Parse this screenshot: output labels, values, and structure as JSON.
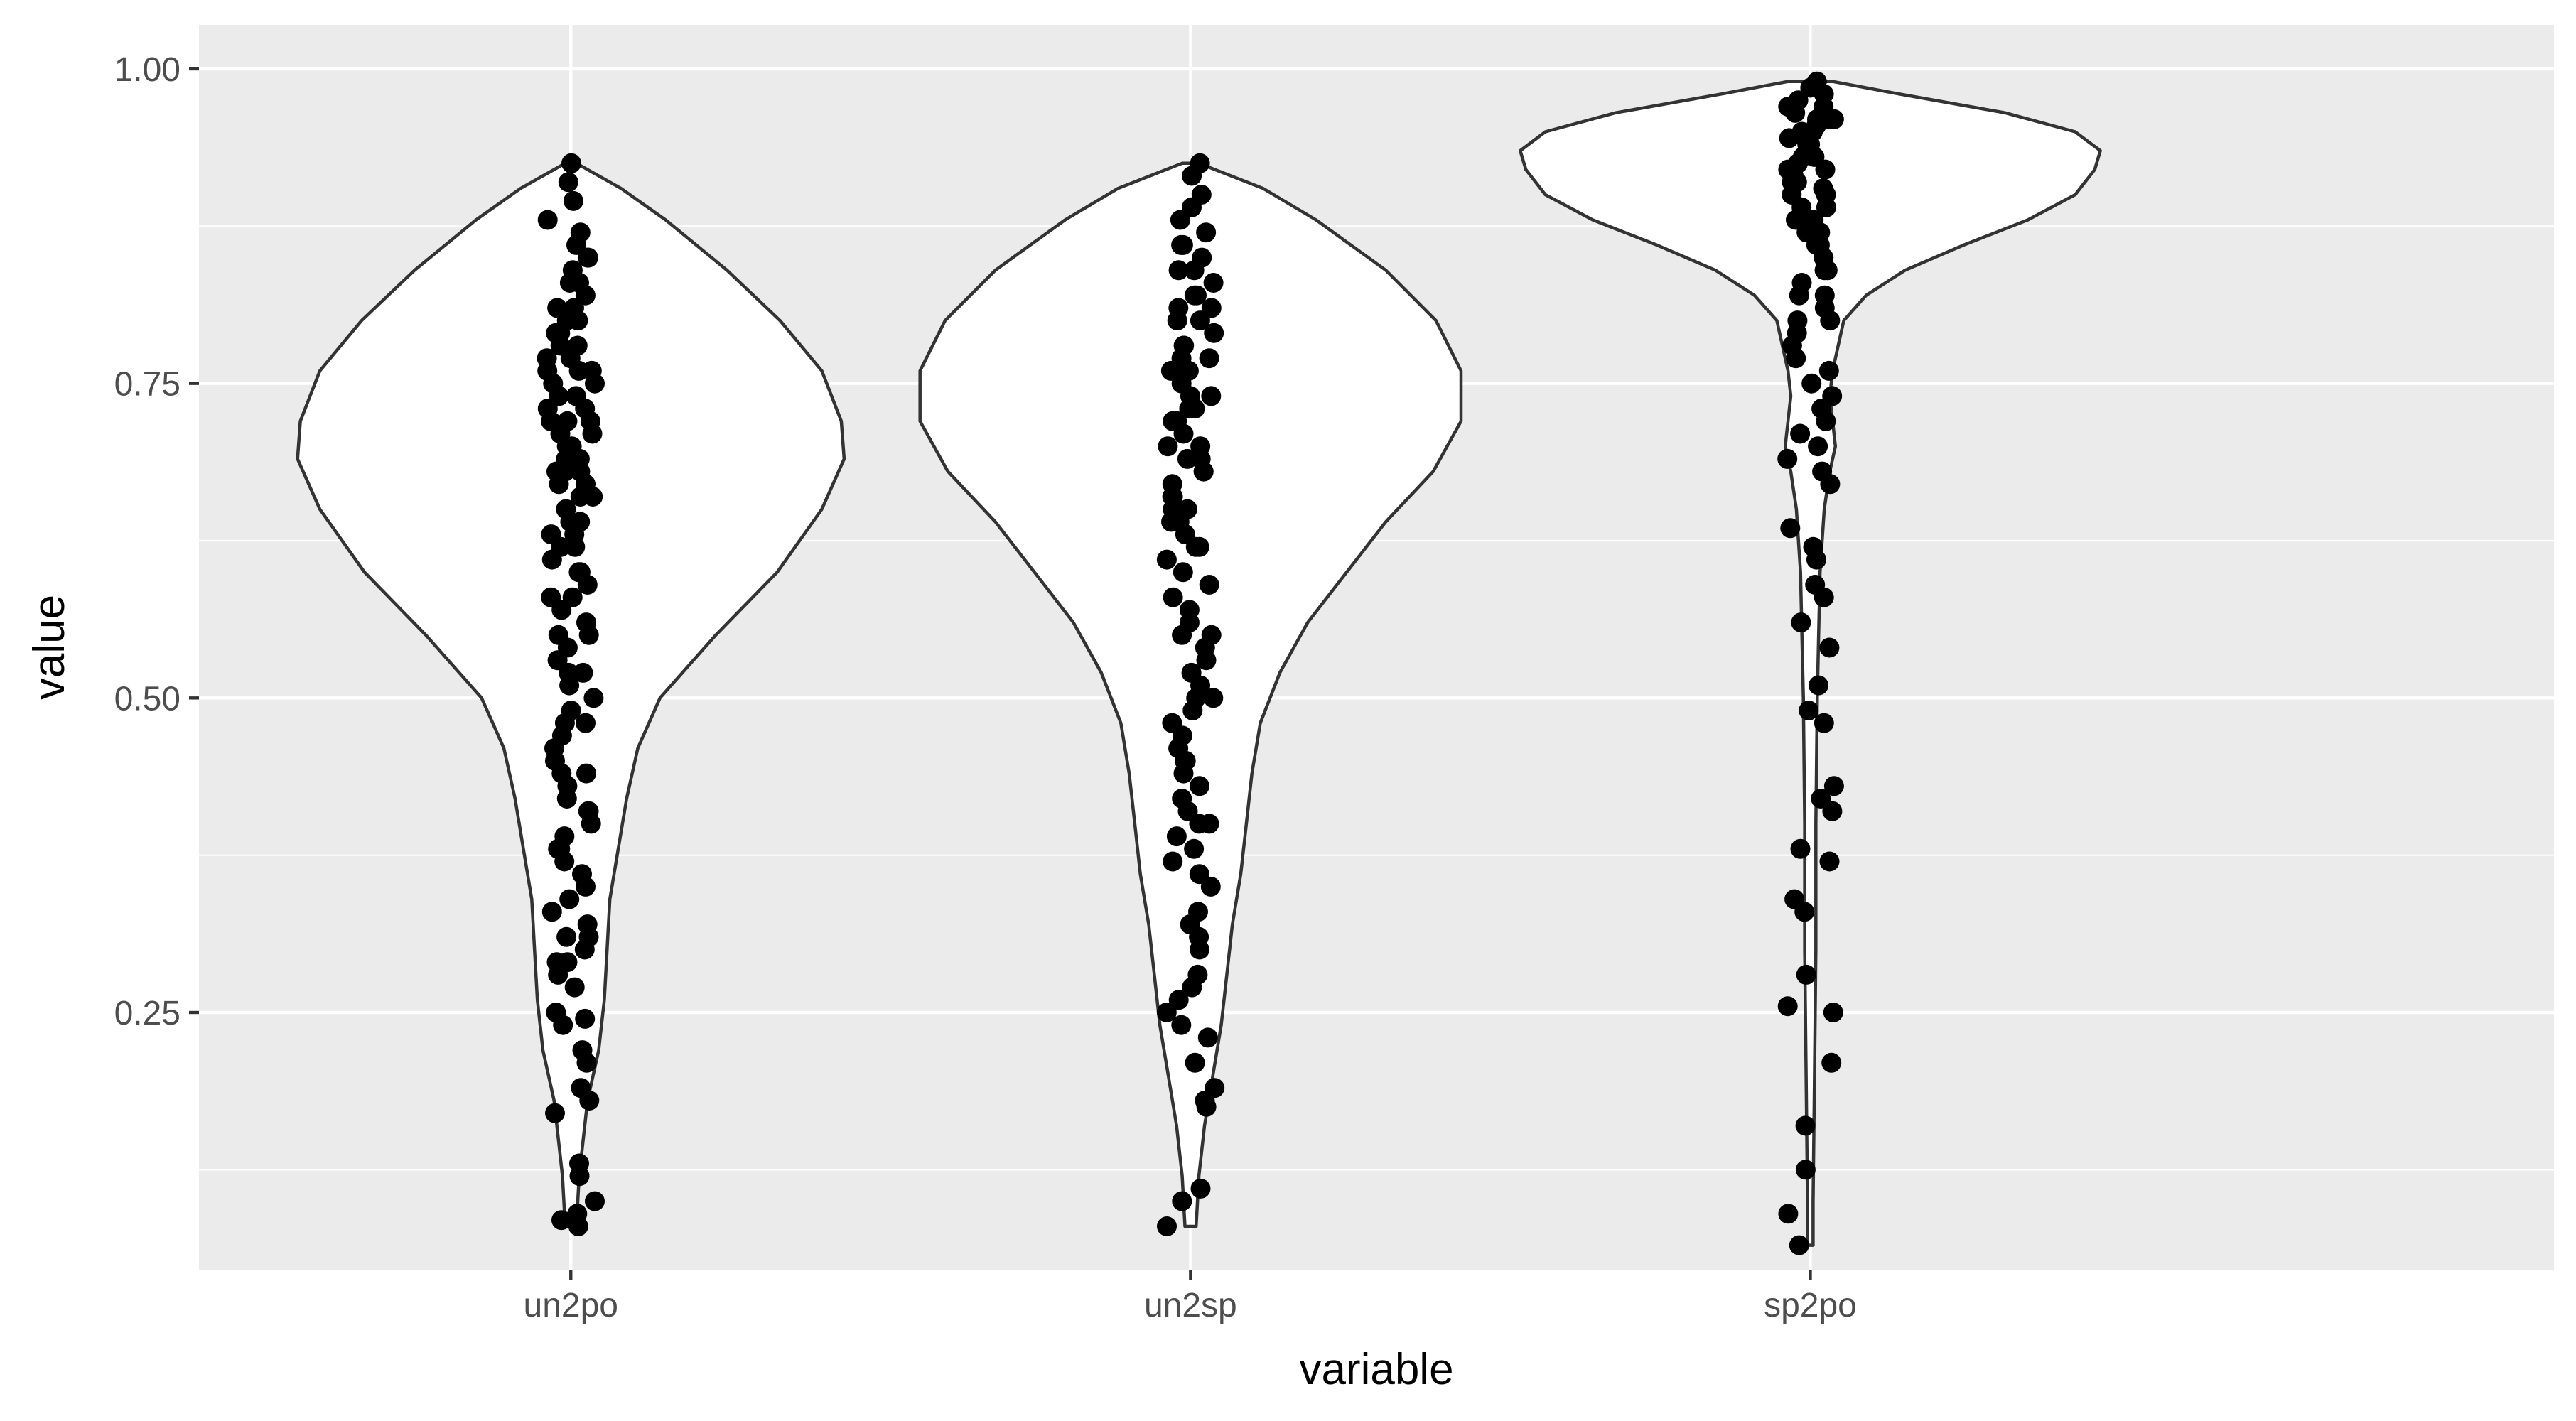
{
  "chart_data": {
    "type": "violin",
    "xlabel": "variable",
    "ylabel": "value",
    "categories": [
      "un2po",
      "un2sp",
      "sp2po"
    ],
    "ylim": [
      0.045,
      1.035
    ],
    "y_ticks": [
      0.25,
      0.5,
      0.75,
      1.0
    ],
    "y_tick_labels": [
      "0.25",
      "0.50",
      "0.75",
      "1.00"
    ],
    "grid": true,
    "colors": {
      "panel_background": "#ebebeb",
      "grid_line": "#ffffff",
      "violin_fill": "#ffffff",
      "violin_outline": "#333333",
      "point": "#000000",
      "tick_label": "#4d4d4d",
      "axis_title": "#000000"
    },
    "violins": [
      {
        "category": "un2po",
        "profile": [
          [
            0.08,
            0.02
          ],
          [
            0.12,
            0.03
          ],
          [
            0.18,
            0.06
          ],
          [
            0.22,
            0.1
          ],
          [
            0.26,
            0.12
          ],
          [
            0.3,
            0.13
          ],
          [
            0.34,
            0.14
          ],
          [
            0.38,
            0.17
          ],
          [
            0.42,
            0.2
          ],
          [
            0.46,
            0.24
          ],
          [
            0.5,
            0.32
          ],
          [
            0.55,
            0.52
          ],
          [
            0.6,
            0.74
          ],
          [
            0.65,
            0.9
          ],
          [
            0.69,
            0.98
          ],
          [
            0.72,
            0.97
          ],
          [
            0.76,
            0.9
          ],
          [
            0.8,
            0.75
          ],
          [
            0.84,
            0.56
          ],
          [
            0.88,
            0.34
          ],
          [
            0.905,
            0.18
          ],
          [
            0.925,
            0.02
          ]
        ],
        "points": [
          0.08,
          0.085,
          0.09,
          0.1,
          0.12,
          0.13,
          0.17,
          0.18,
          0.19,
          0.21,
          0.22,
          0.24,
          0.245,
          0.25,
          0.27,
          0.28,
          0.29,
          0.3,
          0.31,
          0.32,
          0.33,
          0.34,
          0.36,
          0.37,
          0.38,
          0.39,
          0.4,
          0.41,
          0.42,
          0.43,
          0.44,
          0.45,
          0.46,
          0.47,
          0.48,
          0.49,
          0.5,
          0.51,
          0.52,
          0.53,
          0.54,
          0.55,
          0.56,
          0.57,
          0.58,
          0.59,
          0.6,
          0.61,
          0.62,
          0.63,
          0.64,
          0.65,
          0.66,
          0.67,
          0.68,
          0.69,
          0.7,
          0.71,
          0.72,
          0.73,
          0.74,
          0.75,
          0.76,
          0.77,
          0.78,
          0.79,
          0.8,
          0.81,
          0.82,
          0.83,
          0.84,
          0.85,
          0.86,
          0.87,
          0.88,
          0.895,
          0.91,
          0.925,
          0.6,
          0.62,
          0.64,
          0.66,
          0.68,
          0.7,
          0.72,
          0.74,
          0.76,
          0.78,
          0.8,
          0.65,
          0.67,
          0.69,
          0.71,
          0.73,
          0.75,
          0.77,
          0.79,
          0.81,
          0.83,
          0.85,
          0.63,
          0.68,
          0.72,
          0.76,
          0.58,
          0.55,
          0.52,
          0.48,
          0.44,
          0.41,
          0.38,
          0.35,
          0.31,
          0.29
        ]
      },
      {
        "category": "un2sp",
        "profile": [
          [
            0.08,
            0.02
          ],
          [
            0.12,
            0.03
          ],
          [
            0.16,
            0.05
          ],
          [
            0.2,
            0.08
          ],
          [
            0.24,
            0.11
          ],
          [
            0.28,
            0.13
          ],
          [
            0.32,
            0.15
          ],
          [
            0.36,
            0.18
          ],
          [
            0.4,
            0.2
          ],
          [
            0.44,
            0.22
          ],
          [
            0.48,
            0.25
          ],
          [
            0.52,
            0.32
          ],
          [
            0.56,
            0.42
          ],
          [
            0.6,
            0.56
          ],
          [
            0.64,
            0.7
          ],
          [
            0.68,
            0.87
          ],
          [
            0.72,
            0.97
          ],
          [
            0.76,
            0.97
          ],
          [
            0.8,
            0.88
          ],
          [
            0.84,
            0.7
          ],
          [
            0.88,
            0.45
          ],
          [
            0.905,
            0.26
          ],
          [
            0.925,
            0.03
          ]
        ],
        "points": [
          0.08,
          0.1,
          0.11,
          0.175,
          0.18,
          0.19,
          0.21,
          0.23,
          0.24,
          0.25,
          0.26,
          0.27,
          0.28,
          0.3,
          0.31,
          0.32,
          0.33,
          0.35,
          0.36,
          0.37,
          0.38,
          0.39,
          0.4,
          0.41,
          0.42,
          0.43,
          0.44,
          0.45,
          0.46,
          0.47,
          0.48,
          0.49,
          0.5,
          0.51,
          0.52,
          0.53,
          0.54,
          0.55,
          0.56,
          0.57,
          0.58,
          0.59,
          0.6,
          0.61,
          0.62,
          0.63,
          0.64,
          0.65,
          0.66,
          0.67,
          0.68,
          0.69,
          0.7,
          0.71,
          0.72,
          0.73,
          0.74,
          0.75,
          0.76,
          0.77,
          0.78,
          0.79,
          0.8,
          0.81,
          0.82,
          0.83,
          0.84,
          0.85,
          0.86,
          0.87,
          0.88,
          0.89,
          0.9,
          0.915,
          0.925,
          0.62,
          0.64,
          0.66,
          0.68,
          0.7,
          0.72,
          0.74,
          0.76,
          0.78,
          0.8,
          0.82,
          0.84,
          0.86,
          0.65,
          0.69,
          0.73,
          0.77,
          0.81,
          0.55,
          0.5,
          0.45,
          0.4
        ]
      },
      {
        "category": "sp2po",
        "profile": [
          [
            0.065,
            0.01
          ],
          [
            0.1,
            0.01
          ],
          [
            0.2,
            0.015
          ],
          [
            0.3,
            0.02
          ],
          [
            0.4,
            0.02
          ],
          [
            0.5,
            0.025
          ],
          [
            0.55,
            0.03
          ],
          [
            0.6,
            0.035
          ],
          [
            0.65,
            0.05
          ],
          [
            0.68,
            0.07
          ],
          [
            0.7,
            0.09
          ],
          [
            0.72,
            0.08
          ],
          [
            0.74,
            0.07
          ],
          [
            0.76,
            0.08
          ],
          [
            0.78,
            0.1
          ],
          [
            0.8,
            0.12
          ],
          [
            0.82,
            0.2
          ],
          [
            0.84,
            0.34
          ],
          [
            0.86,
            0.55
          ],
          [
            0.88,
            0.78
          ],
          [
            0.9,
            0.95
          ],
          [
            0.92,
            1.02
          ],
          [
            0.935,
            1.04
          ],
          [
            0.95,
            0.95
          ],
          [
            0.965,
            0.7
          ],
          [
            0.98,
            0.32
          ],
          [
            0.99,
            0.08
          ]
        ],
        "points": [
          0.065,
          0.09,
          0.125,
          0.16,
          0.21,
          0.25,
          0.255,
          0.28,
          0.33,
          0.34,
          0.37,
          0.38,
          0.41,
          0.42,
          0.43,
          0.48,
          0.49,
          0.51,
          0.54,
          0.56,
          0.58,
          0.59,
          0.61,
          0.62,
          0.635,
          0.67,
          0.68,
          0.69,
          0.7,
          0.71,
          0.72,
          0.73,
          0.74,
          0.75,
          0.76,
          0.77,
          0.78,
          0.79,
          0.8,
          0.81,
          0.82,
          0.83,
          0.84,
          0.85,
          0.86,
          0.87,
          0.88,
          0.89,
          0.9,
          0.905,
          0.91,
          0.915,
          0.92,
          0.925,
          0.93,
          0.935,
          0.94,
          0.945,
          0.95,
          0.955,
          0.96,
          0.965,
          0.97,
          0.975,
          0.98,
          0.985,
          0.99,
          0.88,
          0.9,
          0.92,
          0.94,
          0.96,
          0.86,
          0.89,
          0.91,
          0.93,
          0.95,
          0.97,
          0.87,
          0.92,
          0.96,
          0.84,
          0.82,
          0.8
        ]
      }
    ]
  }
}
